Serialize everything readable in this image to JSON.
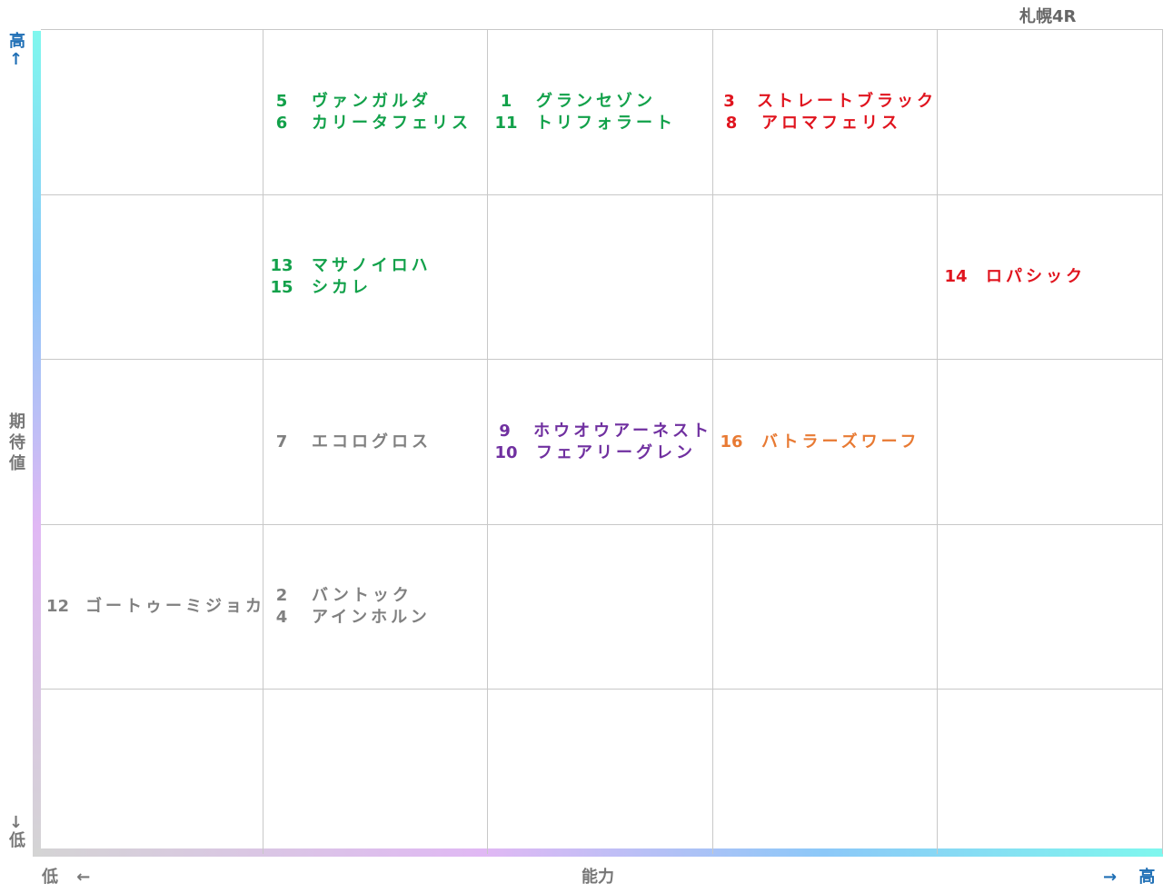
{
  "header": {
    "title": "札幌4R"
  },
  "y_axis": {
    "high": "高↑",
    "label": "期待値",
    "low": "↓低"
  },
  "x_axis": {
    "low": "低 ←",
    "label": "能力",
    "high": "→ 高"
  },
  "grid": {
    "rows": [
      [
        null,
        {
          "color": "#12a14a",
          "entries": [
            {
              "number": "5",
              "name": "ヴァンガルダ"
            },
            {
              "number": "6",
              "name": "カリータフェリス"
            }
          ]
        },
        {
          "color": "#12a14a",
          "entries": [
            {
              "number": "1",
              "name": "グランセゾン"
            },
            {
              "number": "11",
              "name": "トリフォラート"
            }
          ]
        },
        {
          "color": "#e0141e",
          "entries": [
            {
              "number": "3",
              "name": "ストレートブラック"
            },
            {
              "number": "8",
              "name": "アロマフェリス"
            }
          ]
        },
        null
      ],
      [
        null,
        {
          "color": "#12a14a",
          "entries": [
            {
              "number": "13",
              "name": "マサノイロハ"
            },
            {
              "number": "15",
              "name": "シカレ"
            }
          ]
        },
        null,
        null,
        {
          "color": "#e0141e",
          "entries": [
            {
              "number": "14",
              "name": "ロパシック"
            }
          ]
        }
      ],
      [
        null,
        {
          "color": "#808080",
          "entries": [
            {
              "number": "7",
              "name": "エコログロス"
            }
          ]
        },
        {
          "color": "#7030a0",
          "entries": [
            {
              "number": "9",
              "name": "ホウオウアーネスト"
            },
            {
              "number": "10",
              "name": "フェアリーグレン"
            }
          ]
        },
        {
          "color": "#e87a33",
          "entries": [
            {
              "number": "16",
              "name": "バトラーズワーフ"
            }
          ]
        },
        null
      ],
      [
        {
          "color": "#808080",
          "entries": [
            {
              "number": "12",
              "name": "ゴートゥーミジョカ"
            }
          ]
        },
        {
          "color": "#808080",
          "entries": [
            {
              "number": "2",
              "name": "バントック"
            },
            {
              "number": "4",
              "name": "アインホルン"
            }
          ]
        },
        null,
        null,
        null
      ],
      [
        null,
        null,
        null,
        null,
        null
      ]
    ]
  }
}
